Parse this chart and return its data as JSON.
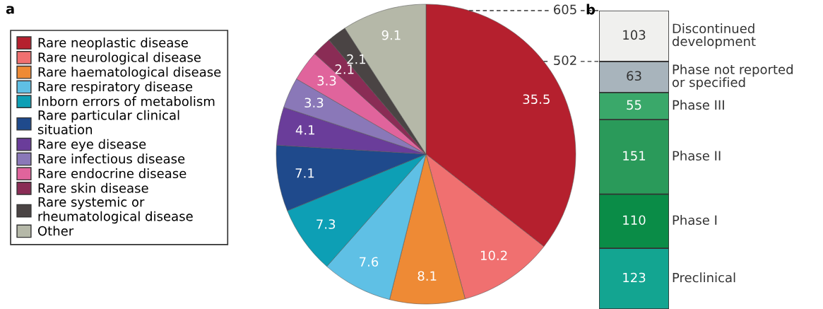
{
  "chart_data": [
    {
      "type": "pie",
      "title": "a",
      "legend": "left",
      "data_labels": true,
      "categories": [
        "Rare neoplastic disease",
        "Rare neurological disease",
        "Rare haematological disease",
        "Rare respiratory disease",
        "Inborn errors of metabolism",
        "Rare particular clinical\nsituation",
        "Rare eye disease",
        "Rare infectious disease",
        "Rare endocrine disease",
        "Rare skin disease",
        "Rare systemic or\nrheumatological disease",
        "Other"
      ],
      "values": [
        35.5,
        10.2,
        8.1,
        7.6,
        7.3,
        7.1,
        4.1,
        3.3,
        3.3,
        2.1,
        2.1,
        9.1
      ],
      "colors": [
        "#b5202e",
        "#f07070",
        "#ee8a35",
        "#5fc0e5",
        "#0d9fb5",
        "#1f4a8c",
        "#6a3d9a",
        "#8a78b8",
        "#e0649c",
        "#8a2c55",
        "#4a4444",
        "#b5b8a8"
      ]
    },
    {
      "type": "bar",
      "title": "b",
      "stacked": true,
      "data_labels": true,
      "tick_labels": false,
      "categories": [
        null
      ],
      "ylim": [
        0,
        605
      ],
      "ref_lines": [
        {
          "axis": "y",
          "value": 605,
          "label": "605",
          "line_style": "dashed"
        },
        {
          "axis": "y",
          "value": 502,
          "label": "502",
          "line_style": "dashed"
        }
      ],
      "series": [
        {
          "name": "Preclinical",
          "color": "#13a591",
          "values": [
            123
          ]
        },
        {
          "name": "Phase I",
          "color": "#0a8c47",
          "values": [
            110
          ]
        },
        {
          "name": "Phase II",
          "color": "#2a9a5a",
          "values": [
            151
          ]
        },
        {
          "name": "Phase III",
          "color": "#3aa86a",
          "values": [
            55
          ]
        },
        {
          "name": "Phase not reported\nor specified",
          "color": "#a8b4bc",
          "values": [
            63
          ]
        },
        {
          "name": "Discontinued\ndevelopment",
          "color": "#f0f0ee",
          "values": [
            103
          ]
        }
      ]
    }
  ]
}
